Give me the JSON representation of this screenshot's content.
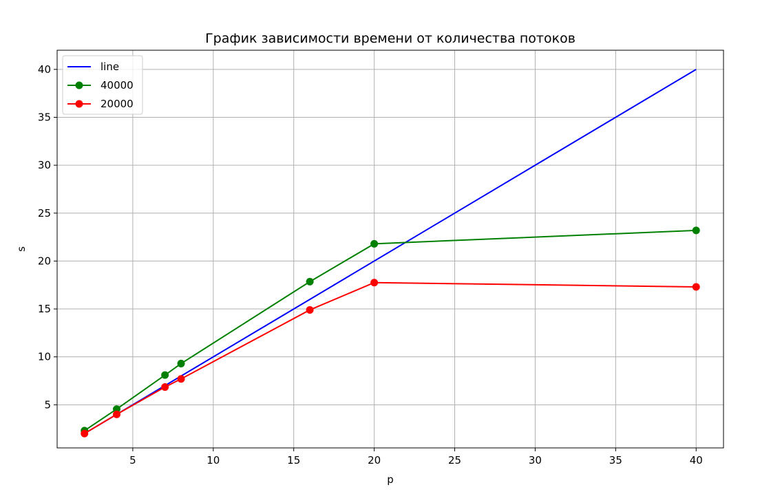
{
  "chart_data": {
    "type": "line",
    "title": "График зависимости времени от количества потоков",
    "xlabel": "p",
    "ylabel": "s",
    "xlim": [
      0.3,
      41.7
    ],
    "ylim": [
      0.5,
      42
    ],
    "xticks": [
      5,
      10,
      15,
      20,
      25,
      30,
      35,
      40
    ],
    "yticks": [
      5,
      10,
      15,
      20,
      25,
      30,
      35,
      40
    ],
    "grid": true,
    "legend_position": "upper-left",
    "series": [
      {
        "name": "line",
        "color": "#0000ff",
        "marker": "none",
        "x": [
          2,
          40
        ],
        "y": [
          2,
          40
        ]
      },
      {
        "name": "40000",
        "color": "#008000",
        "marker": "circle",
        "x": [
          2,
          4,
          7,
          8,
          16,
          20,
          40
        ],
        "y": [
          2.3,
          4.55,
          8.1,
          9.3,
          17.85,
          21.8,
          23.2
        ]
      },
      {
        "name": "20000",
        "color": "#ff0000",
        "marker": "circle",
        "x": [
          2,
          4,
          7,
          8,
          16,
          20,
          40
        ],
        "y": [
          2.0,
          4.0,
          6.85,
          7.7,
          14.9,
          17.75,
          17.3
        ]
      }
    ]
  }
}
